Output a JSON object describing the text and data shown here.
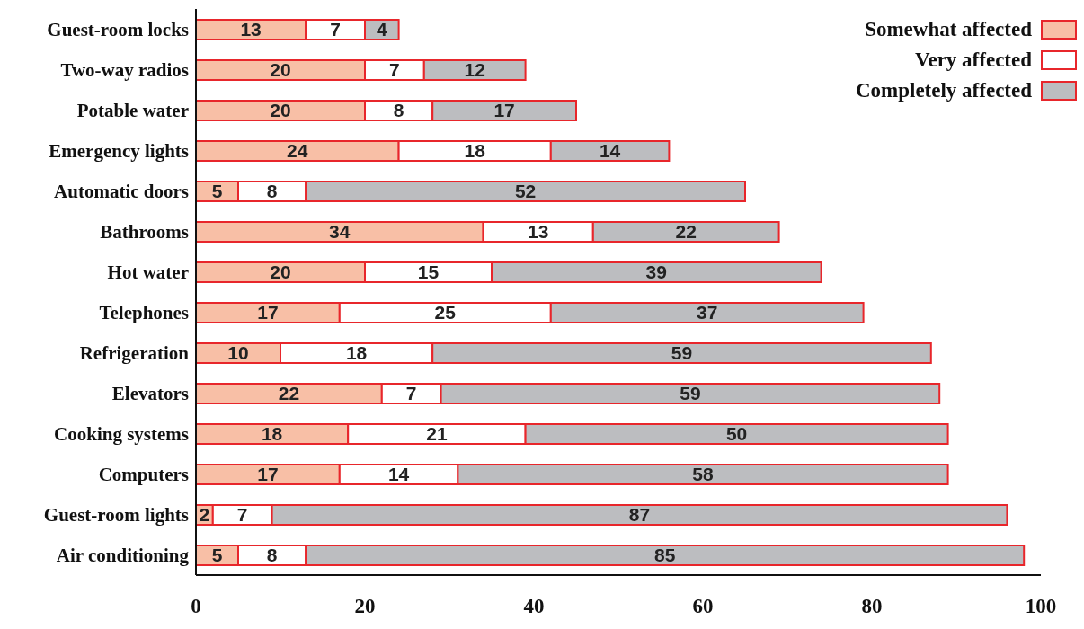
{
  "chart_data": {
    "type": "bar",
    "orientation": "horizontal",
    "stacked": true,
    "data_labels": true,
    "legend": "top right",
    "grid": false,
    "categories": [
      "Guest-room locks",
      "Two-way radios",
      "Potable water",
      "Emergency lights",
      "Automatic doors",
      "Bathrooms",
      "Hot water",
      "Telephones",
      "Refrigeration",
      "Elevators",
      "Cooking systems",
      "Computers",
      "Guest-room lights",
      "Air conditioning"
    ],
    "series": [
      {
        "name": "Somewhat affected",
        "color": "#f8bfa6",
        "values": [
          13,
          20,
          20,
          24,
          5,
          34,
          20,
          17,
          10,
          22,
          18,
          17,
          2,
          5
        ]
      },
      {
        "name": "Very affected",
        "color": "#ffffff",
        "values": [
          7,
          7,
          8,
          18,
          8,
          13,
          15,
          25,
          18,
          7,
          21,
          14,
          7,
          8
        ]
      },
      {
        "name": "Completely affected",
        "color": "#bcbdc0",
        "values": [
          4,
          12,
          17,
          14,
          52,
          22,
          39,
          37,
          59,
          59,
          50,
          58,
          87,
          85
        ]
      }
    ],
    "xlim": [
      0,
      100
    ],
    "xticks": [
      0,
      20,
      40,
      60,
      80,
      100
    ]
  }
}
